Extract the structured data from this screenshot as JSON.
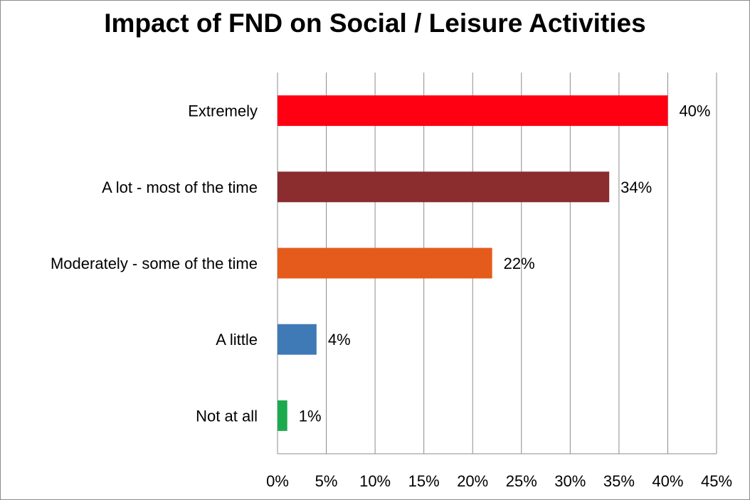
{
  "chart_data": {
    "type": "bar",
    "orientation": "horizontal",
    "title": "Impact of FND on Social / Leisure  Activities",
    "categories": [
      "Extremely",
      "A lot - most of the time",
      "Moderately - some of the time",
      "A little",
      "Not at all"
    ],
    "values": [
      40,
      34,
      22,
      4,
      1
    ],
    "data_labels": [
      "40%",
      "34%",
      "22%",
      "4%",
      "1%"
    ],
    "colors": [
      "#ff0013",
      "#8b2c2f",
      "#e55b1c",
      "#3f79b6",
      "#1daa4f"
    ],
    "xlim": [
      0,
      45
    ],
    "x_ticks": [
      0,
      5,
      10,
      15,
      20,
      25,
      30,
      35,
      40,
      45
    ],
    "x_tick_labels": [
      "0%",
      "5%",
      "10%",
      "15%",
      "20%",
      "25%",
      "30%",
      "35%",
      "40%",
      "45%"
    ],
    "xlabel": "",
    "ylabel": "",
    "grid": "vertical",
    "legend": "none"
  }
}
